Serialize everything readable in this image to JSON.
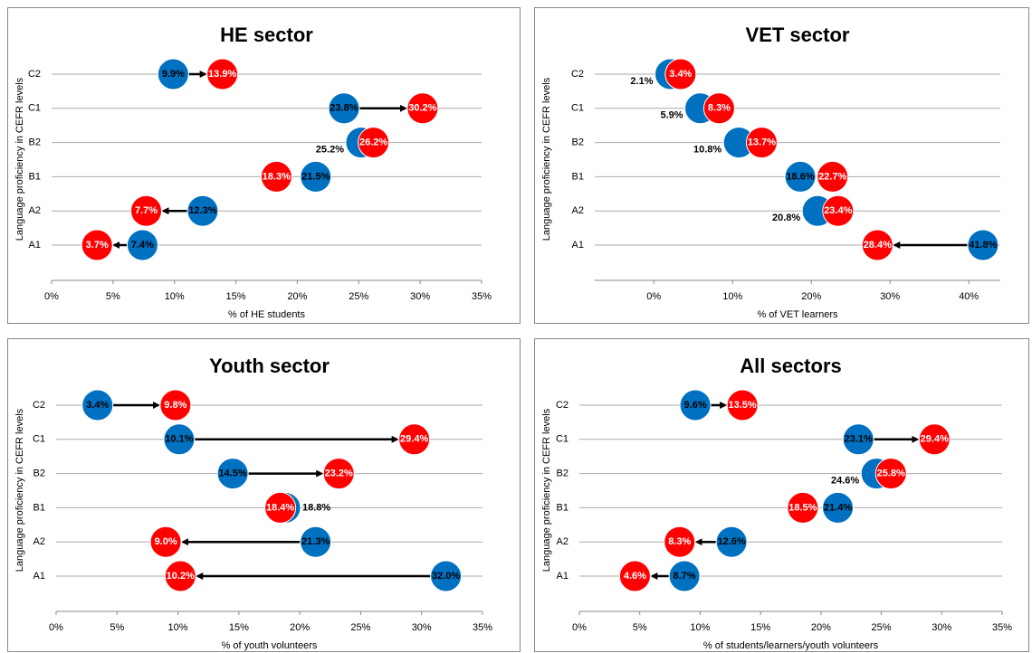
{
  "chart_data": [
    {
      "type": "arrow-dumbbell",
      "title": "HE sector",
      "x_label": "% of HE students",
      "y_label": "Language proficiency in CEFR levels",
      "categories": [
        "C2",
        "C1",
        "B2",
        "B1",
        "A2",
        "A1"
      ],
      "series": [
        {
          "color": "#0070c0",
          "values": [
            9.9,
            23.8,
            25.2,
            21.5,
            12.3,
            7.4
          ],
          "value_labels": [
            "9.9%",
            "23.8%",
            "25.2%",
            "21.5%",
            "12.3%",
            "7.4%"
          ]
        },
        {
          "color": "#ff0000",
          "values": [
            13.9,
            30.2,
            26.2,
            18.3,
            7.7,
            3.7
          ],
          "value_labels": [
            "13.9%",
            "30.2%",
            "26.2%",
            "18.3%",
            "7.7%",
            "3.7%"
          ]
        }
      ],
      "xlim": [
        0,
        35
      ],
      "xticks": [
        {
          "value": 0,
          "label": "0%"
        },
        {
          "value": 5,
          "label": "5%"
        },
        {
          "value": 10,
          "label": "10%"
        },
        {
          "value": 15,
          "label": "15%"
        },
        {
          "value": 20,
          "label": "20%"
        },
        {
          "value": 25,
          "label": "25%"
        },
        {
          "value": 30,
          "label": "30%"
        },
        {
          "value": 35,
          "label": "35%"
        }
      ],
      "grid": true
    },
    {
      "type": "arrow-dumbbell",
      "title": "VET sector",
      "x_label": "% of VET learners",
      "y_label": "Language proficiency in CEFR levels",
      "categories": [
        "C2",
        "C1",
        "B2",
        "B1",
        "A2",
        "A1"
      ],
      "series": [
        {
          "color": "#0070c0",
          "values": [
            2.1,
            5.9,
            10.8,
            18.6,
            20.8,
            41.8
          ],
          "value_labels": [
            "2.1%",
            "5.9%",
            "10.8%",
            "18.6%",
            "20.8%",
            "41.8%"
          ]
        },
        {
          "color": "#ff0000",
          "values": [
            3.4,
            8.3,
            13.7,
            22.7,
            23.4,
            28.4
          ],
          "value_labels": [
            "3.4%",
            "8.3%",
            "13.7%",
            "22.7%",
            "23.4%",
            "28.4%"
          ]
        }
      ],
      "xlim": [
        -7.5,
        44
      ],
      "xticks": [
        {
          "value": 0,
          "label": "0%"
        },
        {
          "value": 10,
          "label": "10%"
        },
        {
          "value": 20,
          "label": "20%"
        },
        {
          "value": 30,
          "label": "30%"
        },
        {
          "value": 40,
          "label": "40%"
        }
      ],
      "grid": true
    },
    {
      "type": "arrow-dumbbell",
      "title": "Youth sector",
      "x_label": "% of youth volunteers",
      "y_label": "Language proficiency in CEFR levels",
      "categories": [
        "C2",
        "C1",
        "B2",
        "B1",
        "A2",
        "A1"
      ],
      "series": [
        {
          "color": "#0070c0",
          "values": [
            3.4,
            10.1,
            14.5,
            18.8,
            21.3,
            32.0
          ],
          "value_labels": [
            "3.4%",
            "10.1%",
            "14.5%",
            "18.8%",
            "21.3%",
            "32.0%"
          ]
        },
        {
          "color": "#ff0000",
          "values": [
            9.8,
            29.4,
            23.2,
            18.4,
            9.0,
            10.2
          ],
          "value_labels": [
            "9.8%",
            "29.4%",
            "23.2%",
            "18.4%",
            "9.0%",
            "10.2%"
          ]
        }
      ],
      "xlim": [
        0,
        35
      ],
      "xticks": [
        {
          "value": 0,
          "label": "0%"
        },
        {
          "value": 5,
          "label": "5%"
        },
        {
          "value": 10,
          "label": "10%"
        },
        {
          "value": 15,
          "label": "15%"
        },
        {
          "value": 20,
          "label": "20%"
        },
        {
          "value": 25,
          "label": "25%"
        },
        {
          "value": 30,
          "label": "30%"
        },
        {
          "value": 35,
          "label": "35%"
        }
      ],
      "grid": true
    },
    {
      "type": "arrow-dumbbell",
      "title": "All sectors",
      "x_label": "% of students/learners/youth volunteers",
      "y_label": "Language proficiency in CEFR levels",
      "categories": [
        "C2",
        "C1",
        "B2",
        "B1",
        "A2",
        "A1"
      ],
      "series": [
        {
          "color": "#0070c0",
          "values": [
            9.6,
            23.1,
            24.6,
            21.4,
            12.6,
            8.7
          ],
          "value_labels": [
            "9.6%",
            "23.1%",
            "24.6%",
            "21.4%",
            "12.6%",
            "8.7%"
          ]
        },
        {
          "color": "#ff0000",
          "values": [
            13.5,
            29.4,
            25.8,
            18.5,
            8.3,
            4.6
          ],
          "value_labels": [
            "13.5%",
            "29.4%",
            "25.8%",
            "18.5%",
            "8.3%",
            "4.6%"
          ]
        }
      ],
      "xlim": [
        0,
        35
      ],
      "xticks": [
        {
          "value": 0,
          "label": "0%"
        },
        {
          "value": 5,
          "label": "5%"
        },
        {
          "value": 10,
          "label": "10%"
        },
        {
          "value": 15,
          "label": "15%"
        },
        {
          "value": 20,
          "label": "20%"
        },
        {
          "value": 25,
          "label": "25%"
        },
        {
          "value": 30,
          "label": "30%"
        },
        {
          "value": 35,
          "label": "35%"
        }
      ],
      "grid": true
    }
  ]
}
